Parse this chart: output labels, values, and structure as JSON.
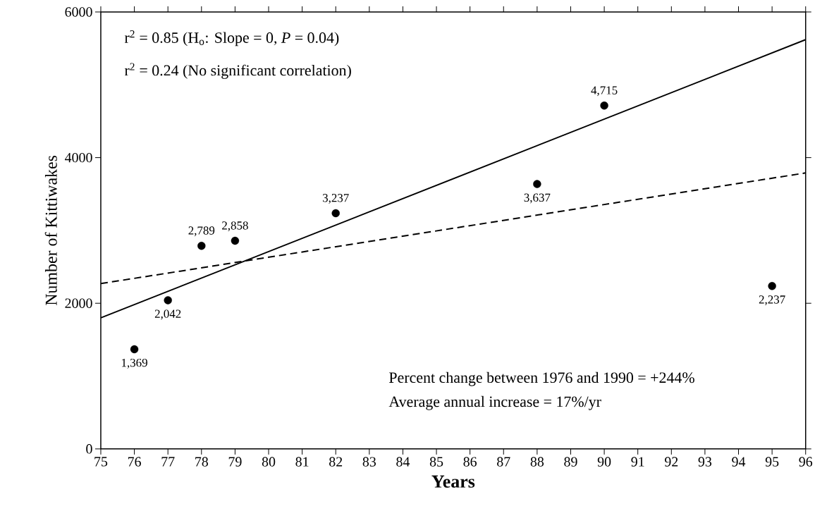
{
  "chart_data": {
    "type": "scatter",
    "xlabel": "Years",
    "ylabel": "Number of Kittiwakes",
    "xlim": [
      75,
      96
    ],
    "xticks": [
      75,
      76,
      77,
      78,
      79,
      80,
      81,
      82,
      83,
      84,
      85,
      86,
      87,
      88,
      89,
      90,
      91,
      92,
      93,
      94,
      95,
      96
    ],
    "ylim": [
      0,
      6000
    ],
    "yticks": [
      0,
      2000,
      4000,
      6000
    ],
    "grid": false,
    "series": [
      {
        "color": "#000000",
        "marker": "circle",
        "x": [
          76,
          77,
          78,
          79,
          82,
          88,
          90,
          95
        ],
        "values": [
          1369,
          2042,
          2789,
          2858,
          3237,
          3637,
          4715,
          2237
        ],
        "value_labels": [
          "1,369",
          "2,042",
          "2,789",
          "2,858",
          "3,237",
          "3,637",
          "4,715",
          "2,237"
        ]
      },
      {
        "type": "line",
        "color": "#000000",
        "marker": "none",
        "line_style": "solid",
        "x": [
          75,
          96
        ],
        "values": [
          1800,
          5620
        ]
      },
      {
        "type": "line",
        "color": "#000000",
        "marker": "none",
        "line_style": "dashed",
        "x": [
          75,
          96
        ],
        "values": [
          2270,
          3790
        ]
      }
    ],
    "annotations": [
      "r$^{2}$ = 0.85 (H$_{o}$:  Slope = 0, *P* = 0.04)",
      "r$^{2}$ = 0.24 (No significant correlation)",
      "Percent change between 1976 and 1990 = +244%",
      "Average annual increase = 17%/yr"
    ]
  }
}
